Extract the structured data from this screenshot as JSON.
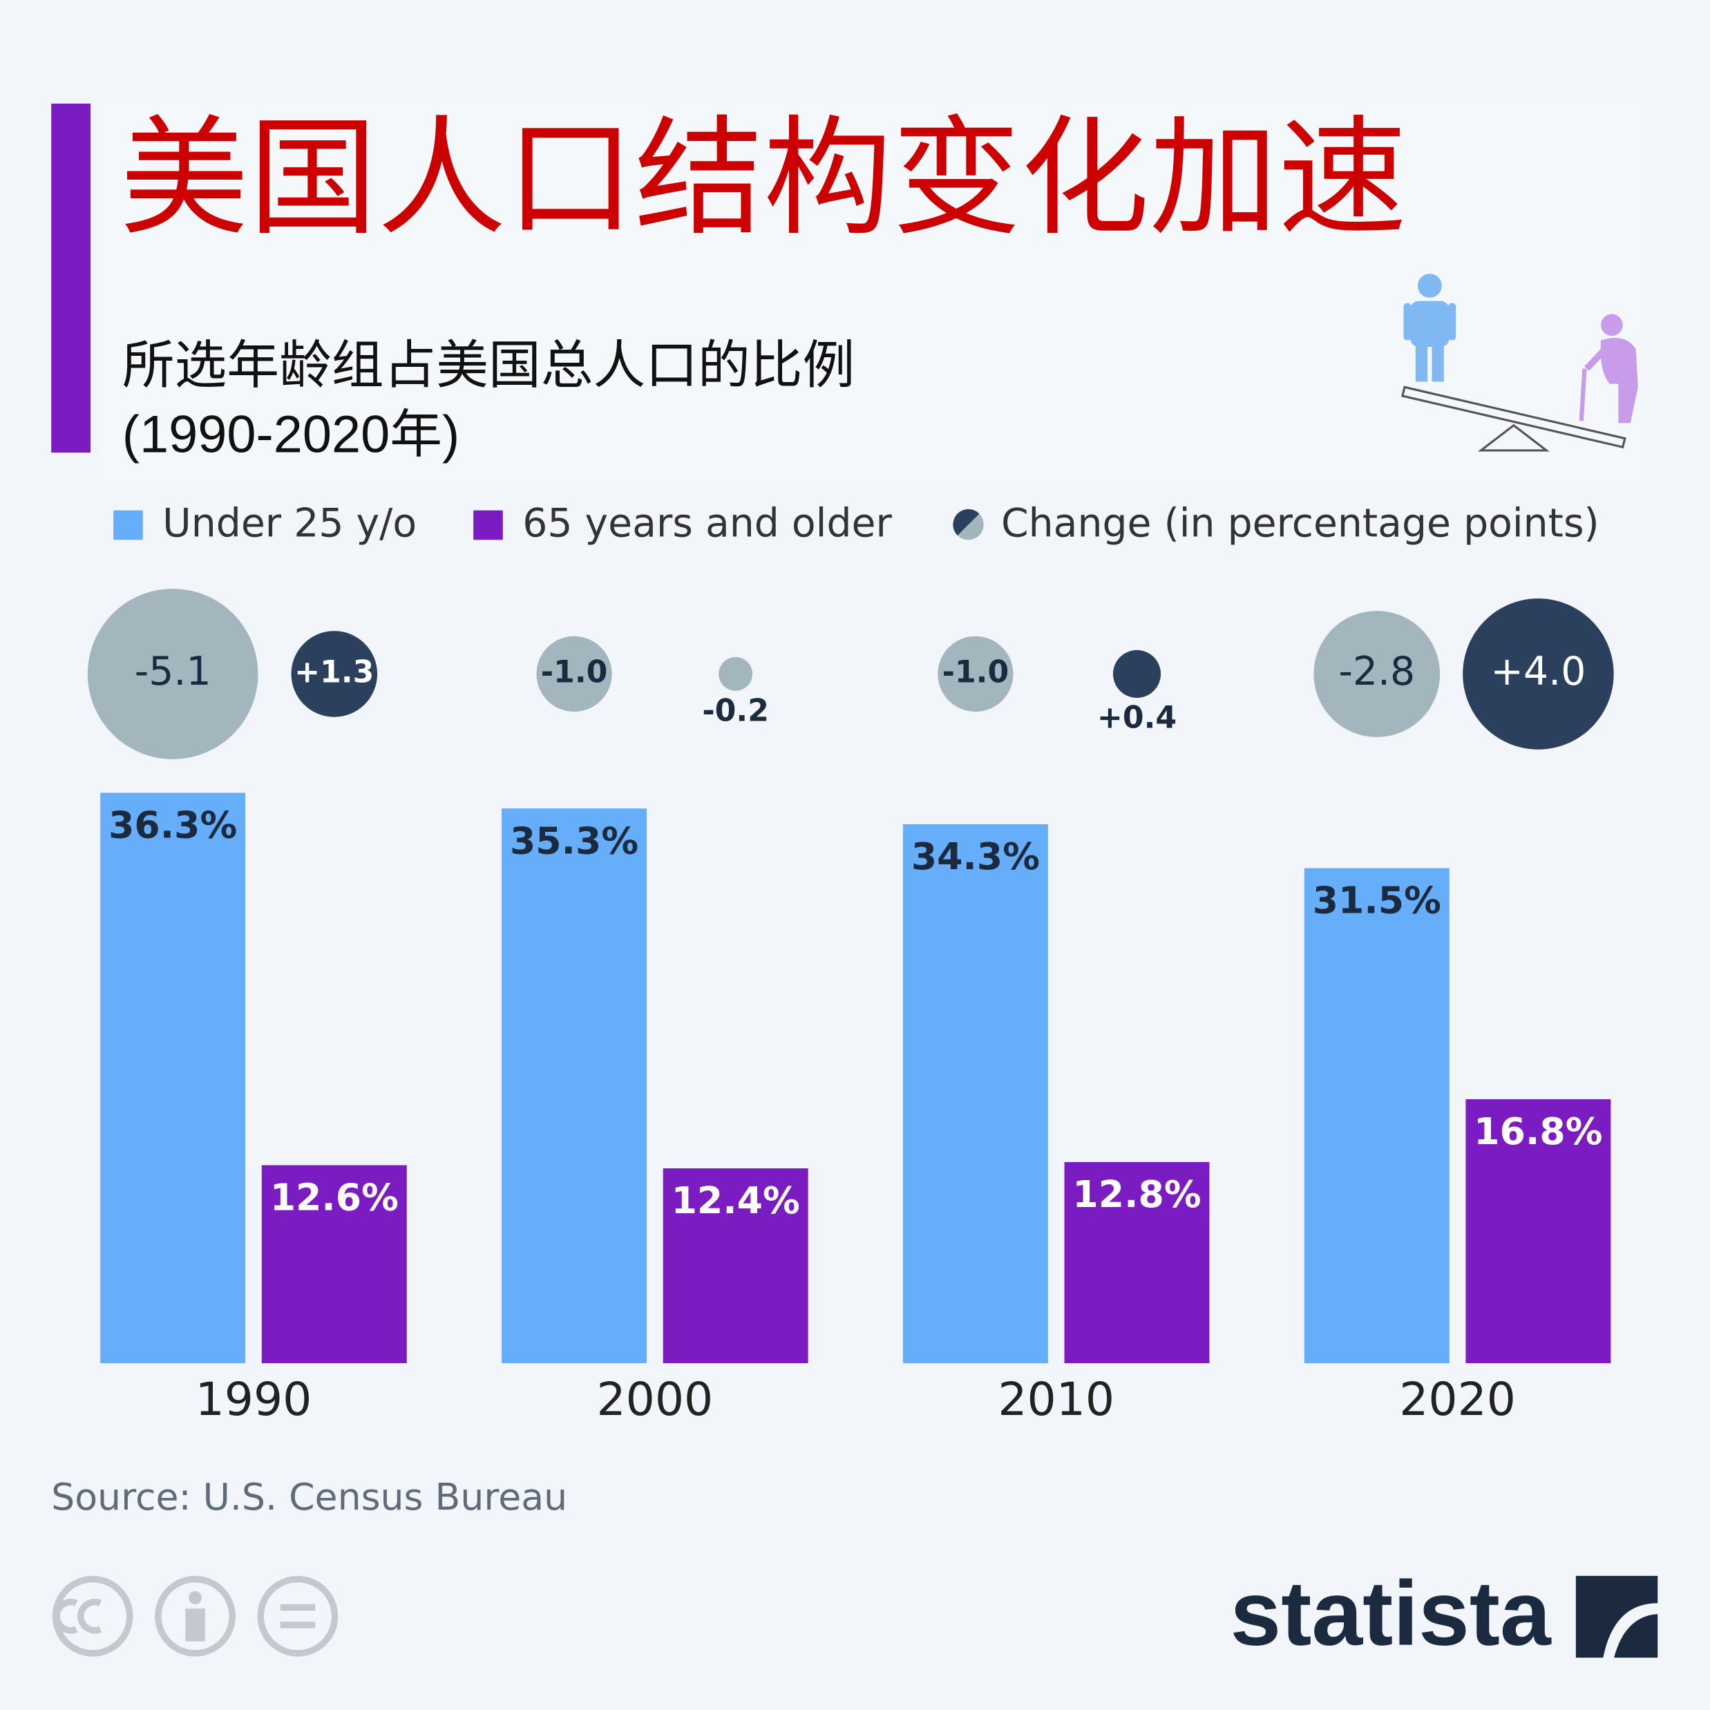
{
  "chart_data": {
    "type": "bar",
    "title": "美国人口结构变化加速",
    "subtitle": [
      "所选年龄组占美国总人口的比例",
      "(1990-2020年)"
    ],
    "categories": [
      "1990",
      "2000",
      "2010",
      "2020"
    ],
    "series": [
      {
        "name": "Under 25 y/o",
        "color": "#66aef9",
        "label_color": "#1b2a3f",
        "values": [
          36.3,
          35.3,
          34.3,
          31.5
        ],
        "value_labels": [
          "36.3%",
          "35.3%",
          "34.3%",
          "31.5%"
        ],
        "changes": [
          -5.1,
          -1.0,
          -1.0,
          -2.8
        ],
        "change_labels": [
          "-5.1",
          "-1.0",
          "-1.0",
          "-2.8"
        ]
      },
      {
        "name": "65 years and older",
        "color": "#7a1cc2",
        "label_color": "#ffffff",
        "values": [
          12.6,
          12.4,
          12.8,
          16.8
        ],
        "value_labels": [
          "12.6%",
          "12.4%",
          "12.8%",
          "16.8%"
        ],
        "changes": [
          1.3,
          -0.2,
          0.4,
          4.0
        ],
        "change_labels": [
          "+1.3",
          "-0.2",
          "+0.4",
          "+4.0"
        ]
      }
    ],
    "change_legend": "Change (in percentage points)",
    "change_colors": {
      "negative": "#a3b6be",
      "positive": "#2b405d"
    },
    "source": "Source: U.S. Census Bureau",
    "brand": "statista"
  }
}
